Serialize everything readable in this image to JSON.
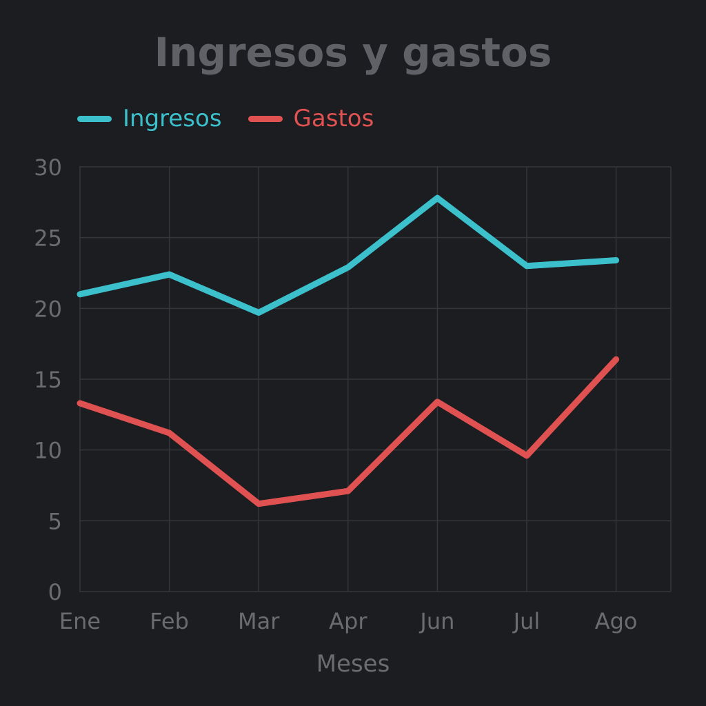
{
  "chart_data": {
    "type": "line",
    "title": "Ingresos y gastos",
    "xlabel": "Meses",
    "ylabel": "",
    "categories": [
      "Ene",
      "Feb",
      "Mar",
      "Apr",
      "Jun",
      "Jul",
      "Ago"
    ],
    "ylim": [
      0,
      30
    ],
    "yticks": [
      "0",
      "5",
      "10",
      "15",
      "20",
      "25",
      "30"
    ],
    "grid": true,
    "legend_position": "top-left",
    "series": [
      {
        "name": "Ingresos",
        "color": "#3bc0cc",
        "values": [
          21.0,
          22.4,
          19.7,
          22.9,
          27.8,
          23.0,
          23.4
        ]
      },
      {
        "name": "Gastos",
        "color": "#e05252",
        "values": [
          13.3,
          11.2,
          6.2,
          7.1,
          13.4,
          9.6,
          16.4
        ]
      }
    ]
  },
  "style": {
    "background": "#1c1d20",
    "grid_color": "#34363a",
    "text_color": "#6a6c70"
  }
}
